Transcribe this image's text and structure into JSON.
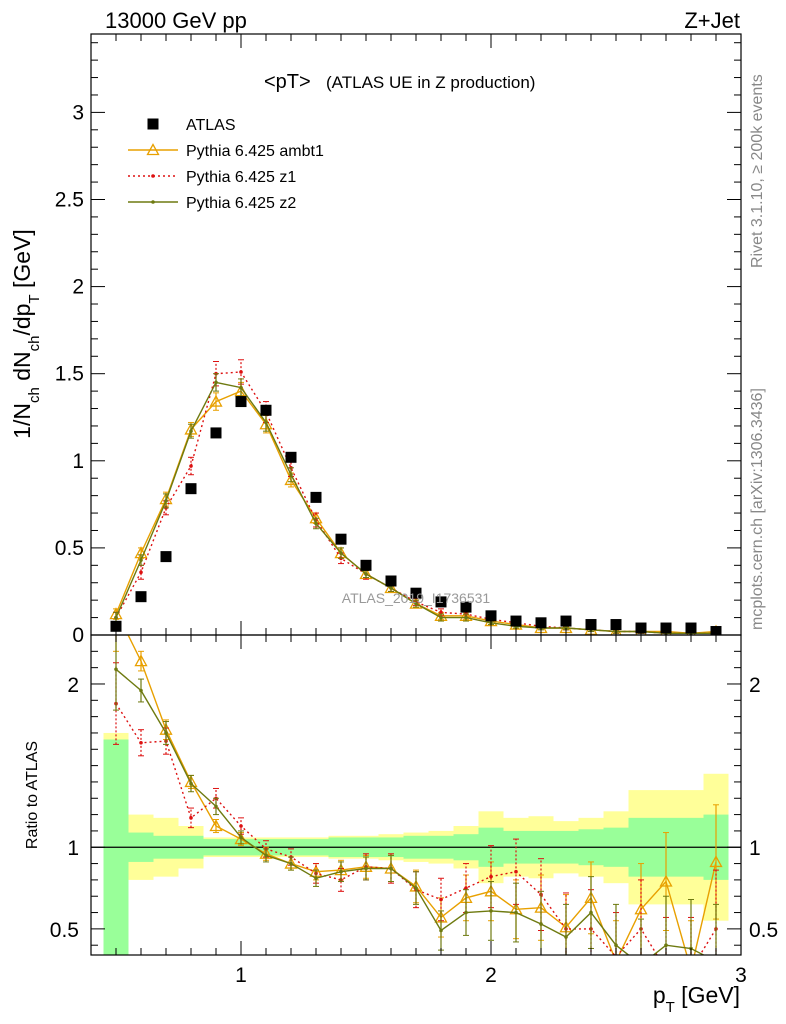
{
  "header": {
    "energy_label": "13000 GeV pp",
    "process_label": "Z+Jet"
  },
  "side_labels": {
    "rivet": "Rivet 3.1.10, ≥ 200k events",
    "mcplots": "mcplots.cern.ch [arXiv:1306.3436]"
  },
  "watermark": "ATLAS_2019_I1736531",
  "chart_data": [
    {
      "type": "scatter",
      "panel": "main",
      "title": "<pT>",
      "subtitle": "(ATLAS UE in Z production)",
      "xlabel": "p_T [GeV]",
      "ylabel": "1/N_ch dN_ch/dp_T [GeV]",
      "xlim": [
        0.4,
        3.0
      ],
      "ylim": [
        0,
        3.45
      ],
      "x_ticks": [
        1,
        2,
        3
      ],
      "y_ticks": [
        0,
        0.5,
        1,
        1.5,
        2,
        2.5,
        3
      ],
      "y_tick_labels": [
        "0",
        "0.5",
        "1",
        "1.5",
        "2",
        "2.5",
        "3"
      ],
      "legend_position": "top-left",
      "x": [
        0.5,
        0.6,
        0.7,
        0.8,
        0.9,
        1.0,
        1.1,
        1.2,
        1.3,
        1.4,
        1.5,
        1.6,
        1.7,
        1.8,
        1.9,
        2.0,
        2.1,
        2.2,
        2.3,
        2.4,
        2.5,
        2.6,
        2.7,
        2.8,
        2.9
      ],
      "series": [
        {
          "name": "ATLAS",
          "color": "#000000",
          "style": "marker-square",
          "values": [
            0.05,
            0.22,
            0.45,
            0.84,
            1.16,
            1.34,
            1.29,
            1.02,
            0.79,
            0.55,
            0.4,
            0.31,
            0.24,
            0.19,
            0.16,
            0.11,
            0.08,
            0.07,
            0.08,
            0.06,
            0.06,
            0.04,
            0.04,
            0.04,
            0.02
          ]
        },
        {
          "name": "Pythia 6.425 ambt1",
          "color": "#e8a000",
          "style": "line-triangle",
          "values": [
            0.12,
            0.47,
            0.78,
            1.18,
            1.34,
            1.4,
            1.21,
            0.89,
            0.67,
            0.47,
            0.35,
            0.27,
            0.18,
            0.11,
            0.11,
            0.08,
            0.06,
            0.04,
            0.04,
            0.03,
            0.02,
            0.02,
            0.02,
            0.01,
            0.02
          ],
          "errors": [
            0.03,
            0.03,
            0.04,
            0.04,
            0.05,
            0.05,
            0.05,
            0.04,
            0.03,
            0.03,
            0.02,
            0.02,
            0.02,
            0.02,
            0.02,
            0.01,
            0.01,
            0.01,
            0.01,
            0.01,
            0.01,
            0.01,
            0.01,
            0.01,
            0.01
          ]
        },
        {
          "name": "Pythia 6.425 z1",
          "color": "#dd1111",
          "style": "dotted-dot",
          "values": [
            0.1,
            0.36,
            0.73,
            0.97,
            1.5,
            1.51,
            1.28,
            0.96,
            0.66,
            0.44,
            0.35,
            0.27,
            0.19,
            0.13,
            0.12,
            0.09,
            0.07,
            0.05,
            0.04,
            0.03,
            0.02,
            0.02,
            0.01,
            0.01,
            0.01
          ],
          "errors": [
            0.03,
            0.04,
            0.04,
            0.05,
            0.07,
            0.07,
            0.06,
            0.05,
            0.04,
            0.03,
            0.03,
            0.02,
            0.02,
            0.02,
            0.02,
            0.01,
            0.01,
            0.01,
            0.01,
            0.01,
            0.01,
            0.01,
            0.01,
            0.01,
            0.01
          ]
        },
        {
          "name": "Pythia 6.425 z2",
          "color": "#6e7a10",
          "style": "line-dot",
          "values": [
            0.1,
            0.43,
            0.77,
            1.17,
            1.45,
            1.42,
            1.22,
            0.92,
            0.64,
            0.47,
            0.35,
            0.27,
            0.18,
            0.1,
            0.1,
            0.07,
            0.05,
            0.04,
            0.04,
            0.03,
            0.02,
            0.02,
            0.01,
            0.01,
            0.01
          ],
          "errors": [
            0.03,
            0.03,
            0.04,
            0.04,
            0.05,
            0.05,
            0.05,
            0.04,
            0.03,
            0.03,
            0.02,
            0.02,
            0.02,
            0.02,
            0.02,
            0.01,
            0.01,
            0.01,
            0.01,
            0.01,
            0.01,
            0.01,
            0.01,
            0.01,
            0.01
          ]
        }
      ]
    },
    {
      "type": "line",
      "panel": "ratio",
      "ylabel": "Ratio to ATLAS",
      "xlabel": "p_T [GeV]",
      "xlim": [
        0.4,
        3.0
      ],
      "ylim": [
        0.34,
        2.3
      ],
      "x_ticks": [
        1,
        2,
        3
      ],
      "x_tick_labels": [
        "1",
        "2",
        "3"
      ],
      "y_ticks": [
        0.5,
        1,
        2
      ],
      "y_tick_labels": [
        "0.5",
        "1",
        "2"
      ],
      "reference_line": 1,
      "x": [
        0.5,
        0.6,
        0.7,
        0.8,
        0.9,
        1.0,
        1.1,
        1.2,
        1.3,
        1.4,
        1.5,
        1.6,
        1.7,
        1.8,
        1.9,
        2.0,
        2.1,
        2.2,
        2.3,
        2.4,
        2.5,
        2.6,
        2.7,
        2.8,
        2.9
      ],
      "band_inner": [
        0.66,
        0.09,
        0.07,
        0.07,
        0.05,
        0.05,
        0.05,
        0.05,
        0.05,
        0.06,
        0.06,
        0.06,
        0.07,
        0.07,
        0.08,
        0.12,
        0.1,
        0.1,
        0.1,
        0.11,
        0.12,
        0.18,
        0.18,
        0.18,
        0.2
      ],
      "band_outer": [
        0.7,
        0.2,
        0.18,
        0.13,
        0.06,
        0.06,
        0.06,
        0.06,
        0.06,
        0.07,
        0.07,
        0.08,
        0.09,
        0.1,
        0.13,
        0.22,
        0.18,
        0.19,
        0.16,
        0.18,
        0.22,
        0.35,
        0.35,
        0.35,
        0.45
      ],
      "series": [
        {
          "name": "Pythia 6.425 ambt1",
          "color": "#e8a000",
          "style": "line-triangle",
          "values": [
            2.45,
            2.14,
            1.72,
            1.4,
            1.13,
            1.05,
            0.96,
            0.9,
            0.85,
            0.86,
            0.88,
            0.87,
            0.76,
            0.57,
            0.69,
            0.73,
            0.62,
            0.63,
            0.51,
            0.69,
            0.3,
            0.62,
            0.79,
            0.25,
            0.91
          ],
          "errors": [
            0.25,
            0.06,
            0.06,
            0.04,
            0.04,
            0.04,
            0.04,
            0.04,
            0.05,
            0.06,
            0.07,
            0.08,
            0.1,
            0.12,
            0.14,
            0.18,
            0.18,
            0.2,
            0.2,
            0.22,
            0.25,
            0.28,
            0.3,
            0.3,
            0.35
          ]
        },
        {
          "name": "Pythia 6.425 z1",
          "color": "#dd1111",
          "style": "dotted-dot",
          "values": [
            1.88,
            1.64,
            1.65,
            1.18,
            1.3,
            1.13,
            0.99,
            0.94,
            0.84,
            0.8,
            0.88,
            0.87,
            0.74,
            0.68,
            0.75,
            0.82,
            0.85,
            0.71,
            0.5,
            0.5,
            0.33,
            0.5,
            0.25,
            0.25,
            0.5
          ],
          "errors": [
            0.25,
            0.08,
            0.08,
            0.06,
            0.06,
            0.05,
            0.05,
            0.05,
            0.06,
            0.07,
            0.08,
            0.09,
            0.11,
            0.13,
            0.15,
            0.19,
            0.2,
            0.22,
            0.22,
            0.24,
            0.27,
            0.3,
            0.32,
            0.32,
            0.36
          ]
        },
        {
          "name": "Pythia 6.425 z2",
          "color": "#6e7a10",
          "style": "line-dot",
          "values": [
            2.09,
            1.96,
            1.7,
            1.39,
            1.25,
            1.06,
            0.95,
            0.9,
            0.81,
            0.85,
            0.87,
            0.87,
            0.75,
            0.49,
            0.6,
            0.61,
            0.6,
            0.53,
            0.45,
            0.6,
            0.4,
            0.28,
            0.4,
            0.38,
            0.3
          ],
          "errors": [
            0.25,
            0.07,
            0.07,
            0.05,
            0.05,
            0.04,
            0.04,
            0.04,
            0.05,
            0.06,
            0.07,
            0.08,
            0.1,
            0.12,
            0.14,
            0.18,
            0.18,
            0.2,
            0.2,
            0.22,
            0.25,
            0.28,
            0.3,
            0.3,
            0.35
          ]
        }
      ]
    }
  ]
}
